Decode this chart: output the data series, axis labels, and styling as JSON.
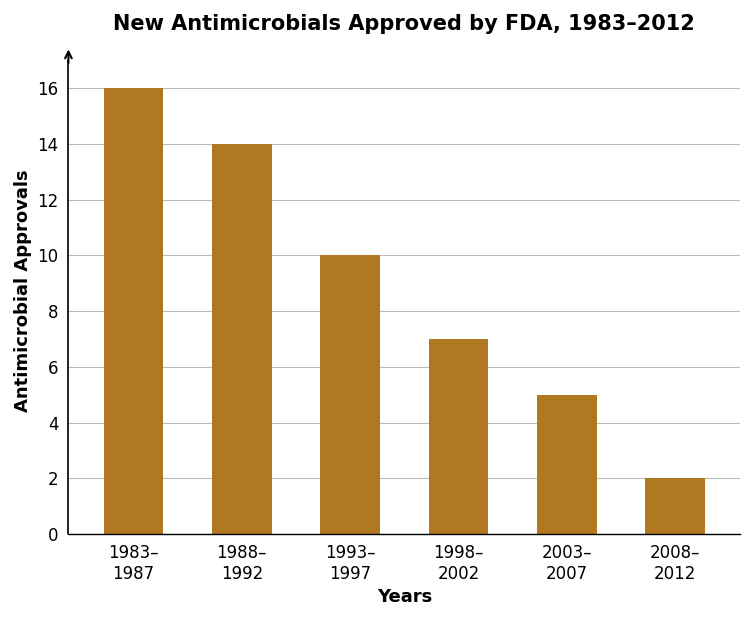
{
  "title": "New Antimicrobials Approved by FDA, 1983–2012",
  "xlabel": "Years",
  "ylabel": "Antimicrobial Approvals",
  "categories": [
    "1983–\n1987",
    "1988–\n1992",
    "1993–\n1997",
    "1998–\n2002",
    "2003–\n2007",
    "2008–\n2012"
  ],
  "values": [
    16,
    14,
    10,
    7,
    5,
    2
  ],
  "bar_color": "#B07820",
  "ylim": [
    0,
    17.5
  ],
  "yticks": [
    0,
    2,
    4,
    6,
    8,
    10,
    12,
    14,
    16
  ],
  "title_fontsize": 15,
  "axis_label_fontsize": 13,
  "tick_fontsize": 12,
  "background_color": "#ffffff",
  "grid_color": "#bbbbbb"
}
